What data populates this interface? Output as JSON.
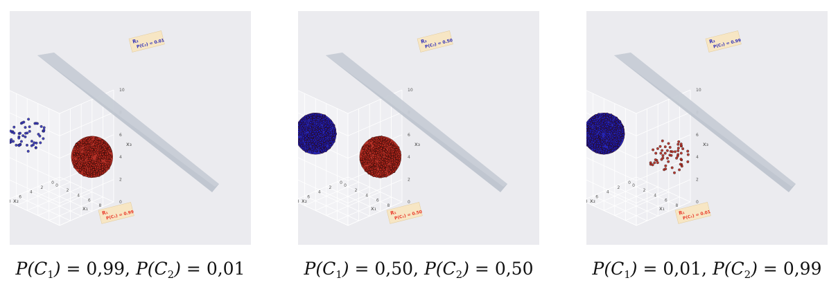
{
  "chart_data": [
    {
      "type": "scatter",
      "title": "",
      "xlabel": "x₁",
      "ylabel": "x₂",
      "zlabel": "x₃",
      "xlim": [
        0,
        10
      ],
      "ylim": [
        0,
        10
      ],
      "zlim": [
        0,
        10
      ],
      "ticks": [
        "0",
        "2",
        "4",
        "6",
        "8",
        "10"
      ],
      "series": [
        {
          "name": "C₁",
          "color": "#b1261c",
          "center": [
            8,
            2,
            4
          ],
          "radius": 1.8,
          "density": "dense"
        },
        {
          "name": "C₂",
          "color": "#2f2fb8",
          "center": [
            2,
            8,
            6
          ],
          "radius": 1.8,
          "density": "sparse"
        }
      ],
      "decision_plane": "shown",
      "annotations": [
        {
          "region": "R₁",
          "text": "P(C₁) = 0.99",
          "color": "#e8392a"
        },
        {
          "region": "R₂",
          "text": "P(C₂) = 0.01",
          "color": "#2f2fb8"
        }
      ],
      "caption": {
        "p1_label": "P(C",
        "p1_value": "0,99",
        "p2_label": "P(C",
        "p2_value": "0,01"
      }
    },
    {
      "type": "scatter",
      "title": "",
      "xlabel": "x₁",
      "ylabel": "x₂",
      "zlabel": "x₃",
      "xlim": [
        0,
        10
      ],
      "ylim": [
        0,
        10
      ],
      "zlim": [
        0,
        10
      ],
      "ticks": [
        "0",
        "2",
        "4",
        "6",
        "8",
        "10"
      ],
      "series": [
        {
          "name": "C₁",
          "color": "#b1261c",
          "center": [
            8,
            2,
            4
          ],
          "radius": 1.8,
          "density": "dense"
        },
        {
          "name": "C₂",
          "color": "#1a1ab0",
          "center": [
            2,
            8,
            6
          ],
          "radius": 1.8,
          "density": "dense"
        }
      ],
      "decision_plane": "shown",
      "annotations": [
        {
          "region": "R₁",
          "text": "P(C₁) = 0.50",
          "color": "#e8392a"
        },
        {
          "region": "R₂",
          "text": "P(C₂) = 0.50",
          "color": "#2f2fb8"
        }
      ],
      "caption": {
        "p1_label": "P(C",
        "p1_value": "0,50",
        "p2_label": "P(C",
        "p2_value": "0,50"
      }
    },
    {
      "type": "scatter",
      "title": "",
      "xlabel": "x₁",
      "ylabel": "x₂",
      "zlabel": "x₃",
      "xlim": [
        0,
        10
      ],
      "ylim": [
        0,
        10
      ],
      "zlim": [
        0,
        10
      ],
      "ticks": [
        "0",
        "2",
        "4",
        "6",
        "8",
        "10"
      ],
      "series": [
        {
          "name": "C₁",
          "color": "#b1261c",
          "center": [
            8,
            2,
            4
          ],
          "radius": 1.8,
          "density": "sparse"
        },
        {
          "name": "C₂",
          "color": "#1a1ab0",
          "center": [
            2,
            8,
            6
          ],
          "radius": 1.8,
          "density": "dense"
        }
      ],
      "decision_plane": "shown",
      "annotations": [
        {
          "region": "R₁",
          "text": "P(C₁) = 0.01",
          "color": "#e8392a"
        },
        {
          "region": "R₂",
          "text": "P(C₂) = 0.99",
          "color": "#2f2fb8"
        }
      ],
      "caption": {
        "p1_label": "P(C",
        "p1_value": "0,01",
        "p2_label": "P(C",
        "p2_value": "0,99"
      }
    }
  ]
}
